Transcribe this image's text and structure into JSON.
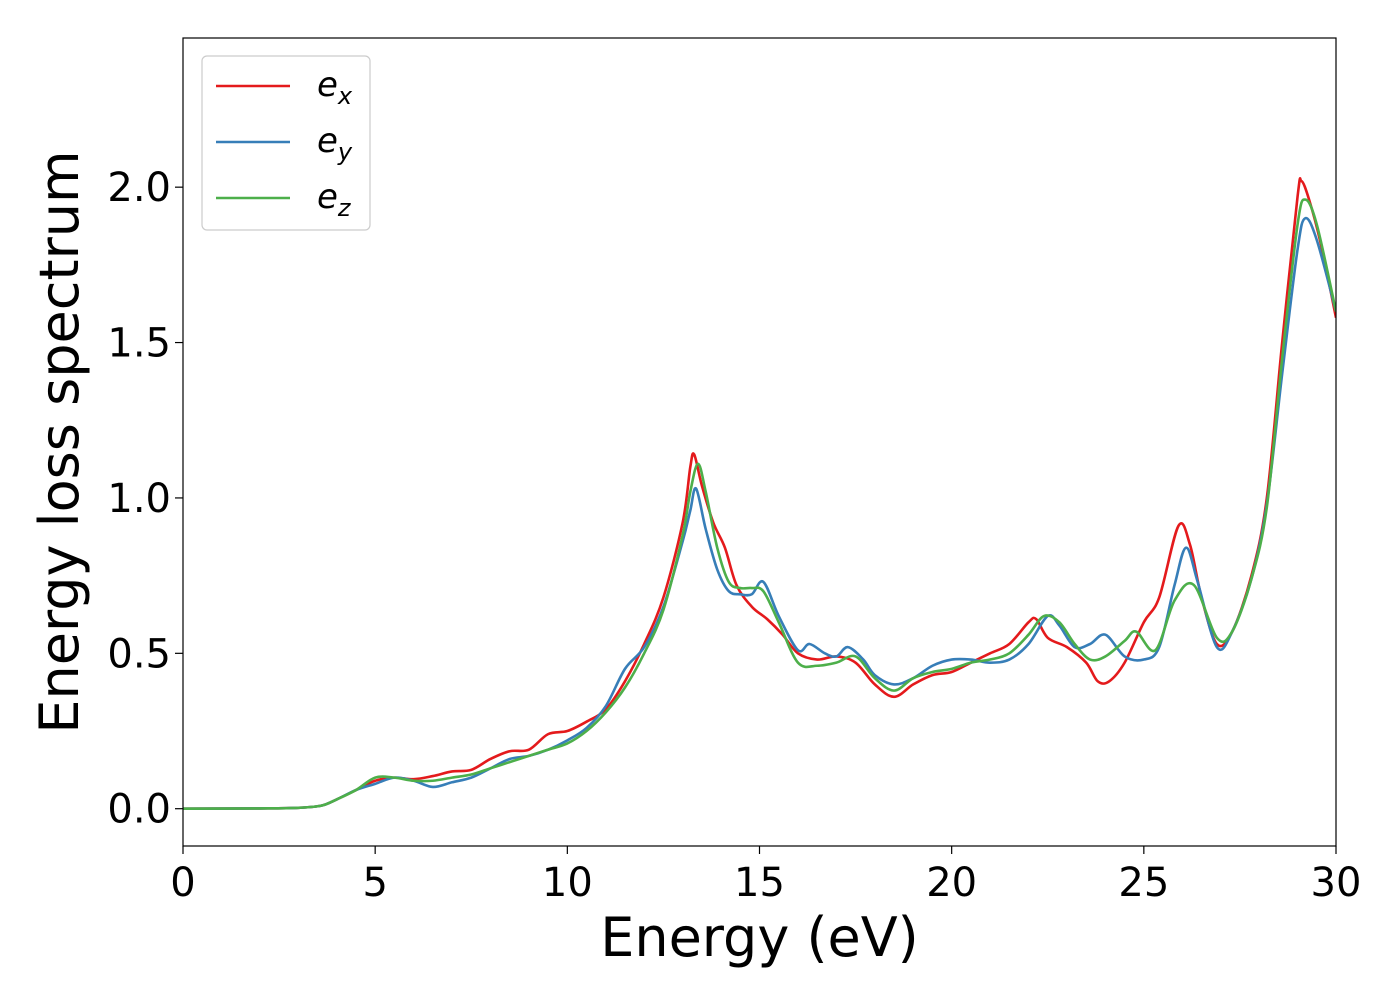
{
  "chart_data": {
    "type": "line",
    "title": "",
    "xlabel": "Energy (eV)",
    "ylabel": "Energy loss spectrum",
    "xlim": [
      0,
      30
    ],
    "ylim": [
      -0.12,
      2.48
    ],
    "xticks": [
      0,
      5,
      10,
      15,
      20,
      25,
      30
    ],
    "xtick_labels": [
      "0",
      "5",
      "10",
      "15",
      "20",
      "25",
      "30"
    ],
    "yticks": [
      0.0,
      0.5,
      1.0,
      1.5,
      2.0
    ],
    "ytick_labels": [
      "0.0",
      "0.5",
      "1.0",
      "1.5",
      "2.0"
    ],
    "grid": false,
    "legend_position": "top-left",
    "series": [
      {
        "name": "e_x",
        "label_base": "e",
        "label_sub": "x",
        "color": "#e41a1c",
        "points": [
          [
            0,
            0
          ],
          [
            2,
            0.001
          ],
          [
            3,
            0.003
          ],
          [
            3.6,
            0.01
          ],
          [
            4,
            0.03
          ],
          [
            4.5,
            0.06
          ],
          [
            5,
            0.09
          ],
          [
            5.5,
            0.1
          ],
          [
            6,
            0.095
          ],
          [
            6.5,
            0.105
          ],
          [
            7,
            0.12
          ],
          [
            7.5,
            0.125
          ],
          [
            8,
            0.16
          ],
          [
            8.5,
            0.185
          ],
          [
            9,
            0.19
          ],
          [
            9.5,
            0.24
          ],
          [
            10,
            0.25
          ],
          [
            10.5,
            0.28
          ],
          [
            11,
            0.32
          ],
          [
            11.5,
            0.41
          ],
          [
            12,
            0.53
          ],
          [
            12.5,
            0.68
          ],
          [
            13,
            0.92
          ],
          [
            13.2,
            1.1
          ],
          [
            13.3,
            1.14
          ],
          [
            13.5,
            1.04
          ],
          [
            13.8,
            0.92
          ],
          [
            14.1,
            0.84
          ],
          [
            14.4,
            0.72
          ],
          [
            14.8,
            0.65
          ],
          [
            15.2,
            0.61
          ],
          [
            15.6,
            0.56
          ],
          [
            16,
            0.5
          ],
          [
            16.5,
            0.48
          ],
          [
            17,
            0.49
          ],
          [
            17.5,
            0.47
          ],
          [
            18,
            0.4
          ],
          [
            18.5,
            0.36
          ],
          [
            19,
            0.4
          ],
          [
            19.5,
            0.43
          ],
          [
            20,
            0.44
          ],
          [
            20.5,
            0.47
          ],
          [
            21,
            0.5
          ],
          [
            21.5,
            0.53
          ],
          [
            22,
            0.6
          ],
          [
            22.2,
            0.61
          ],
          [
            22.5,
            0.55
          ],
          [
            23,
            0.52
          ],
          [
            23.5,
            0.47
          ],
          [
            23.8,
            0.41
          ],
          [
            24.1,
            0.41
          ],
          [
            24.5,
            0.47
          ],
          [
            25,
            0.6
          ],
          [
            25.4,
            0.68
          ],
          [
            25.9,
            0.91
          ],
          [
            26.2,
            0.85
          ],
          [
            26.5,
            0.68
          ],
          [
            26.9,
            0.53
          ],
          [
            27.3,
            0.57
          ],
          [
            27.8,
            0.75
          ],
          [
            28.2,
            1.0
          ],
          [
            28.6,
            1.5
          ],
          [
            29.0,
            1.97
          ],
          [
            29.1,
            2.02
          ],
          [
            29.3,
            1.96
          ],
          [
            29.6,
            1.82
          ],
          [
            30,
            1.58
          ]
        ]
      },
      {
        "name": "e_y",
        "label_base": "e",
        "label_sub": "y",
        "color": "#377eb8",
        "points": [
          [
            0,
            0
          ],
          [
            2,
            0.001
          ],
          [
            3,
            0.003
          ],
          [
            3.6,
            0.01
          ],
          [
            4,
            0.03
          ],
          [
            4.5,
            0.06
          ],
          [
            5,
            0.08
          ],
          [
            5.5,
            0.1
          ],
          [
            6,
            0.09
          ],
          [
            6.5,
            0.07
          ],
          [
            7,
            0.085
          ],
          [
            7.5,
            0.1
          ],
          [
            8,
            0.13
          ],
          [
            8.5,
            0.16
          ],
          [
            9,
            0.17
          ],
          [
            9.5,
            0.19
          ],
          [
            10,
            0.22
          ],
          [
            10.5,
            0.26
          ],
          [
            11,
            0.33
          ],
          [
            11.5,
            0.45
          ],
          [
            12,
            0.52
          ],
          [
            12.5,
            0.65
          ],
          [
            13,
            0.86
          ],
          [
            13.2,
            0.96
          ],
          [
            13.35,
            1.03
          ],
          [
            13.6,
            0.9
          ],
          [
            13.9,
            0.77
          ],
          [
            14.2,
            0.7
          ],
          [
            14.5,
            0.69
          ],
          [
            14.8,
            0.69
          ],
          [
            15.1,
            0.73
          ],
          [
            15.5,
            0.62
          ],
          [
            16,
            0.51
          ],
          [
            16.3,
            0.53
          ],
          [
            16.7,
            0.5
          ],
          [
            17,
            0.49
          ],
          [
            17.3,
            0.52
          ],
          [
            17.7,
            0.48
          ],
          [
            18,
            0.43
          ],
          [
            18.5,
            0.4
          ],
          [
            19,
            0.42
          ],
          [
            19.5,
            0.46
          ],
          [
            20,
            0.48
          ],
          [
            20.5,
            0.48
          ],
          [
            21,
            0.47
          ],
          [
            21.5,
            0.48
          ],
          [
            22,
            0.53
          ],
          [
            22.5,
            0.62
          ],
          [
            22.8,
            0.59
          ],
          [
            23.2,
            0.52
          ],
          [
            23.6,
            0.53
          ],
          [
            24,
            0.56
          ],
          [
            24.5,
            0.49
          ],
          [
            25,
            0.48
          ],
          [
            25.4,
            0.52
          ],
          [
            25.8,
            0.72
          ],
          [
            26.1,
            0.84
          ],
          [
            26.4,
            0.73
          ],
          [
            26.9,
            0.52
          ],
          [
            27.3,
            0.57
          ],
          [
            27.8,
            0.74
          ],
          [
            28.2,
            0.98
          ],
          [
            28.6,
            1.4
          ],
          [
            29.0,
            1.8
          ],
          [
            29.2,
            1.9
          ],
          [
            29.5,
            1.83
          ],
          [
            30,
            1.6
          ]
        ]
      },
      {
        "name": "e_z",
        "label_base": "e",
        "label_sub": "z",
        "color": "#4daf4a",
        "points": [
          [
            0,
            0
          ],
          [
            2,
            0.001
          ],
          [
            3,
            0.003
          ],
          [
            3.6,
            0.01
          ],
          [
            4,
            0.03
          ],
          [
            4.5,
            0.06
          ],
          [
            5,
            0.1
          ],
          [
            5.5,
            0.1
          ],
          [
            6,
            0.09
          ],
          [
            6.5,
            0.09
          ],
          [
            7,
            0.1
          ],
          [
            7.5,
            0.11
          ],
          [
            8,
            0.13
          ],
          [
            8.5,
            0.15
          ],
          [
            9,
            0.17
          ],
          [
            9.5,
            0.19
          ],
          [
            10,
            0.21
          ],
          [
            10.5,
            0.25
          ],
          [
            11,
            0.31
          ],
          [
            11.5,
            0.39
          ],
          [
            12,
            0.5
          ],
          [
            12.5,
            0.64
          ],
          [
            13,
            0.88
          ],
          [
            13.2,
            1.02
          ],
          [
            13.4,
            1.11
          ],
          [
            13.6,
            1.02
          ],
          [
            13.9,
            0.84
          ],
          [
            14.2,
            0.73
          ],
          [
            14.5,
            0.71
          ],
          [
            14.8,
            0.71
          ],
          [
            15.1,
            0.7
          ],
          [
            15.5,
            0.6
          ],
          [
            16,
            0.47
          ],
          [
            16.5,
            0.46
          ],
          [
            17,
            0.47
          ],
          [
            17.5,
            0.49
          ],
          [
            18,
            0.42
          ],
          [
            18.5,
            0.38
          ],
          [
            19,
            0.42
          ],
          [
            19.5,
            0.44
          ],
          [
            20,
            0.45
          ],
          [
            20.5,
            0.47
          ],
          [
            21,
            0.48
          ],
          [
            21.5,
            0.5
          ],
          [
            22,
            0.56
          ],
          [
            22.4,
            0.62
          ],
          [
            22.8,
            0.6
          ],
          [
            23.2,
            0.53
          ],
          [
            23.6,
            0.48
          ],
          [
            24,
            0.49
          ],
          [
            24.5,
            0.54
          ],
          [
            24.8,
            0.57
          ],
          [
            25.3,
            0.51
          ],
          [
            25.8,
            0.67
          ],
          [
            26.3,
            0.72
          ],
          [
            26.9,
            0.55
          ],
          [
            27.3,
            0.57
          ],
          [
            27.8,
            0.74
          ],
          [
            28.2,
            0.97
          ],
          [
            28.6,
            1.45
          ],
          [
            29.0,
            1.88
          ],
          [
            29.2,
            1.96
          ],
          [
            29.5,
            1.88
          ],
          [
            30,
            1.6
          ]
        ]
      }
    ]
  }
}
